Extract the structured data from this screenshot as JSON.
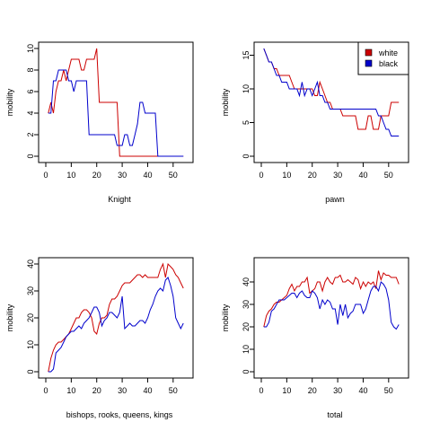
{
  "chart_data": [
    {
      "type": "line",
      "title": "",
      "xlabel": "Knight",
      "ylabel": "mobility",
      "xlim": [
        0,
        55
      ],
      "ylim": [
        0,
        10
      ],
      "xticks": [
        0,
        10,
        20,
        30,
        40,
        50
      ],
      "yticks": [
        0,
        2,
        4,
        6,
        8,
        10
      ],
      "grid": false,
      "legend": null,
      "series": [
        {
          "color": "#cc0000",
          "x": [
            1,
            2,
            3,
            4,
            5,
            6,
            7,
            8,
            9,
            10,
            11,
            12,
            13,
            14,
            15,
            16,
            17,
            18,
            19,
            20,
            21,
            22,
            23,
            24,
            25,
            26,
            27,
            28,
            29,
            30,
            35,
            40,
            44,
            45,
            54
          ],
          "y": [
            4,
            5,
            4,
            6,
            7,
            7,
            8,
            7,
            8,
            9,
            9,
            9,
            9,
            8,
            8,
            9,
            9,
            9,
            9,
            10,
            5,
            5,
            5,
            5,
            5,
            5,
            5,
            5,
            0,
            0,
            0,
            0,
            0,
            0,
            0
          ]
        },
        {
          "color": "#0000cc",
          "x": [
            1,
            2,
            3,
            4,
            5,
            6,
            7,
            8,
            9,
            10,
            11,
            12,
            13,
            14,
            15,
            16,
            17,
            18,
            19,
            20,
            25,
            26,
            27,
            28,
            29,
            30,
            31,
            32,
            33,
            34,
            35,
            36,
            37,
            38,
            39,
            40,
            41,
            42,
            43,
            44,
            45,
            54
          ],
          "y": [
            4,
            4,
            7,
            7,
            8,
            8,
            8,
            8,
            7,
            7,
            6,
            7,
            7,
            7,
            7,
            7,
            2,
            2,
            2,
            2,
            2,
            2,
            2,
            1,
            1,
            1,
            2,
            2,
            1,
            1,
            2,
            3,
            5,
            5,
            4,
            4,
            4,
            4,
            4,
            0,
            0,
            0
          ]
        }
      ]
    },
    {
      "type": "line",
      "title": "",
      "xlabel": "pawn",
      "ylabel": "mobility",
      "xlim": [
        0,
        55
      ],
      "ylim": [
        0,
        16
      ],
      "xticks": [
        0,
        10,
        20,
        30,
        40,
        50
      ],
      "yticks": [
        0,
        5,
        10,
        15
      ],
      "grid": false,
      "legend": {
        "position": "top-right",
        "entries": [
          {
            "label": "white",
            "color": "#cc0000"
          },
          {
            "label": "black",
            "color": "#0000cc"
          }
        ]
      },
      "series": [
        {
          "name": "white",
          "color": "#cc0000",
          "x": [
            1,
            2,
            3,
            4,
            5,
            6,
            7,
            8,
            9,
            10,
            11,
            12,
            13,
            14,
            15,
            16,
            17,
            18,
            19,
            20,
            21,
            22,
            23,
            24,
            25,
            26,
            27,
            28,
            29,
            30,
            31,
            32,
            33,
            34,
            35,
            36,
            37,
            38,
            39,
            40,
            41,
            42,
            43,
            44,
            45,
            46,
            47,
            48,
            49,
            50,
            51,
            52,
            53,
            54
          ],
          "y": [
            16,
            15,
            14,
            14,
            13,
            13,
            12,
            12,
            12,
            12,
            12,
            11,
            10,
            10,
            10,
            10,
            10,
            10,
            10,
            10,
            9,
            9,
            11,
            10,
            9,
            8,
            8,
            7,
            7,
            7,
            7,
            6,
            6,
            6,
            6,
            6,
            6,
            4,
            4,
            4,
            4,
            6,
            6,
            4,
            4,
            4,
            6,
            6,
            6,
            6,
            8,
            8,
            8,
            8
          ]
        },
        {
          "name": "black",
          "color": "#0000cc",
          "x": [
            1,
            2,
            3,
            4,
            5,
            6,
            7,
            8,
            9,
            10,
            11,
            12,
            13,
            14,
            15,
            16,
            17,
            18,
            19,
            20,
            21,
            22,
            23,
            24,
            25,
            26,
            27,
            28,
            29,
            30,
            31,
            32,
            33,
            34,
            35,
            36,
            37,
            38,
            39,
            40,
            41,
            42,
            43,
            44,
            45,
            46,
            47,
            48,
            49,
            50,
            51,
            52,
            53,
            54
          ],
          "y": [
            16,
            15,
            14,
            14,
            13,
            12,
            12,
            11,
            11,
            11,
            10,
            10,
            10,
            10,
            9,
            11,
            9,
            10,
            10,
            9,
            10,
            11,
            9,
            9,
            8,
            8,
            7,
            7,
            7,
            7,
            7,
            7,
            7,
            7,
            7,
            7,
            7,
            7,
            7,
            7,
            7,
            7,
            7,
            7,
            7,
            6,
            6,
            5,
            4,
            4,
            3,
            3,
            3,
            3
          ]
        }
      ]
    },
    {
      "type": "line",
      "title": "",
      "xlabel": "bishops, rooks, queens, kings",
      "ylabel": "mobility",
      "xlim": [
        0,
        55
      ],
      "ylim": [
        0,
        40
      ],
      "xticks": [
        0,
        10,
        20,
        30,
        40,
        50
      ],
      "yticks": [
        0,
        10,
        20,
        30,
        40
      ],
      "grid": false,
      "legend": null,
      "series": [
        {
          "color": "#cc0000",
          "x": [
            1,
            2,
            3,
            4,
            5,
            6,
            7,
            8,
            9,
            10,
            11,
            12,
            13,
            14,
            15,
            16,
            17,
            18,
            19,
            20,
            21,
            22,
            23,
            24,
            25,
            26,
            27,
            28,
            29,
            30,
            31,
            32,
            33,
            34,
            35,
            36,
            37,
            38,
            39,
            40,
            41,
            42,
            43,
            44,
            45,
            46,
            47,
            48,
            49,
            50,
            51,
            52,
            53,
            54
          ],
          "y": [
            0,
            5,
            8,
            10,
            11,
            11,
            12,
            13,
            14,
            16,
            18,
            20,
            20,
            22,
            23,
            23,
            22,
            20,
            15,
            14,
            18,
            20,
            20,
            21,
            25,
            27,
            27,
            28,
            30,
            32,
            33,
            33,
            33,
            34,
            35,
            36,
            36,
            35,
            36,
            35,
            35,
            35,
            35,
            35,
            38,
            40,
            35,
            40,
            39,
            38,
            36,
            35,
            33,
            31
          ]
        },
        {
          "color": "#0000cc",
          "x": [
            1,
            2,
            3,
            4,
            5,
            6,
            7,
            8,
            9,
            10,
            11,
            12,
            13,
            14,
            15,
            16,
            17,
            18,
            19,
            20,
            21,
            22,
            23,
            24,
            25,
            26,
            27,
            28,
            29,
            30,
            31,
            32,
            33,
            34,
            35,
            36,
            37,
            38,
            39,
            40,
            41,
            42,
            43,
            44,
            45,
            46,
            47,
            48,
            49,
            50,
            51,
            52,
            53,
            54
          ],
          "y": [
            0,
            0,
            1,
            7,
            8,
            9,
            11,
            13,
            14,
            15,
            15,
            16,
            17,
            16,
            18,
            19,
            20,
            22,
            24,
            24,
            22,
            17,
            19,
            20,
            22,
            22,
            21,
            20,
            22,
            28,
            16,
            17,
            18,
            17,
            17,
            18,
            19,
            19,
            18,
            20,
            23,
            25,
            28,
            30,
            31,
            30,
            34,
            35,
            32,
            28,
            20,
            18,
            16,
            18
          ]
        }
      ]
    },
    {
      "type": "line",
      "title": "",
      "xlabel": "total",
      "ylabel": "mobility",
      "xlim": [
        0,
        55
      ],
      "ylim": [
        0,
        48
      ],
      "xticks": [
        0,
        10,
        20,
        30,
        40,
        50
      ],
      "yticks": [
        0,
        10,
        20,
        30,
        40
      ],
      "grid": false,
      "legend": null,
      "series": [
        {
          "color": "#cc0000",
          "x": [
            1,
            2,
            3,
            4,
            5,
            6,
            7,
            8,
            9,
            10,
            11,
            12,
            13,
            14,
            15,
            16,
            17,
            18,
            19,
            20,
            21,
            22,
            23,
            24,
            25,
            26,
            27,
            28,
            29,
            30,
            31,
            32,
            33,
            34,
            35,
            36,
            37,
            38,
            39,
            40,
            41,
            42,
            43,
            44,
            45,
            46,
            47,
            48,
            49,
            50,
            51,
            52,
            53,
            54
          ],
          "y": [
            20,
            25,
            27,
            28,
            30,
            31,
            31,
            32,
            33,
            34,
            37,
            39,
            36,
            38,
            38,
            40,
            40,
            42,
            35,
            36,
            37,
            40,
            40,
            36,
            40,
            42,
            40,
            39,
            42,
            42,
            43,
            40,
            40,
            41,
            40,
            39,
            42,
            41,
            37,
            40,
            38,
            40,
            39,
            40,
            37,
            45,
            41,
            44,
            43,
            43,
            42,
            42,
            42,
            39
          ]
        },
        {
          "color": "#0000cc",
          "x": [
            1,
            2,
            3,
            4,
            5,
            6,
            7,
            8,
            9,
            10,
            11,
            12,
            13,
            14,
            15,
            16,
            17,
            18,
            19,
            20,
            21,
            22,
            23,
            24,
            25,
            26,
            27,
            28,
            29,
            30,
            31,
            32,
            33,
            34,
            35,
            36,
            37,
            38,
            39,
            40,
            41,
            42,
            43,
            44,
            45,
            46,
            47,
            48,
            49,
            50,
            51,
            52,
            53,
            54
          ],
          "y": [
            20,
            20,
            22,
            27,
            28,
            30,
            32,
            32,
            32,
            33,
            34,
            35,
            35,
            33,
            35,
            36,
            34,
            33,
            33,
            36,
            35,
            33,
            28,
            32,
            30,
            32,
            31,
            28,
            28,
            21,
            30,
            25,
            30,
            24,
            26,
            27,
            30,
            30,
            30,
            26,
            28,
            32,
            36,
            38,
            38,
            36,
            40,
            39,
            37,
            32,
            22,
            20,
            19,
            21
          ]
        }
      ]
    }
  ]
}
